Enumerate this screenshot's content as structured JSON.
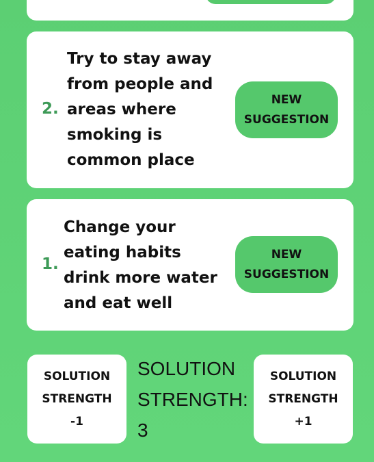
{
  "suggestions": [
    {
      "number": "2.",
      "text": "Try to stay away\nfrom people and\nareas where\nsmoking is\ncommon place",
      "button_label": "NEW\nSUGGESTION"
    },
    {
      "number": "1.",
      "text": "Change your\neating habits\ndrink more water\nand eat well",
      "button_label": "NEW\nSUGGESTION"
    }
  ],
  "strength": {
    "minus_label": "SOLUTION\nSTRENGTH\n-1",
    "plus_label": "SOLUTION\nSTRENGTH\n+1",
    "display": "SOLUTION\nSTRENGTH:\n3"
  },
  "colors": {
    "background": "#5ccf73",
    "button": "#55c86c",
    "number": "#3d9a57"
  }
}
